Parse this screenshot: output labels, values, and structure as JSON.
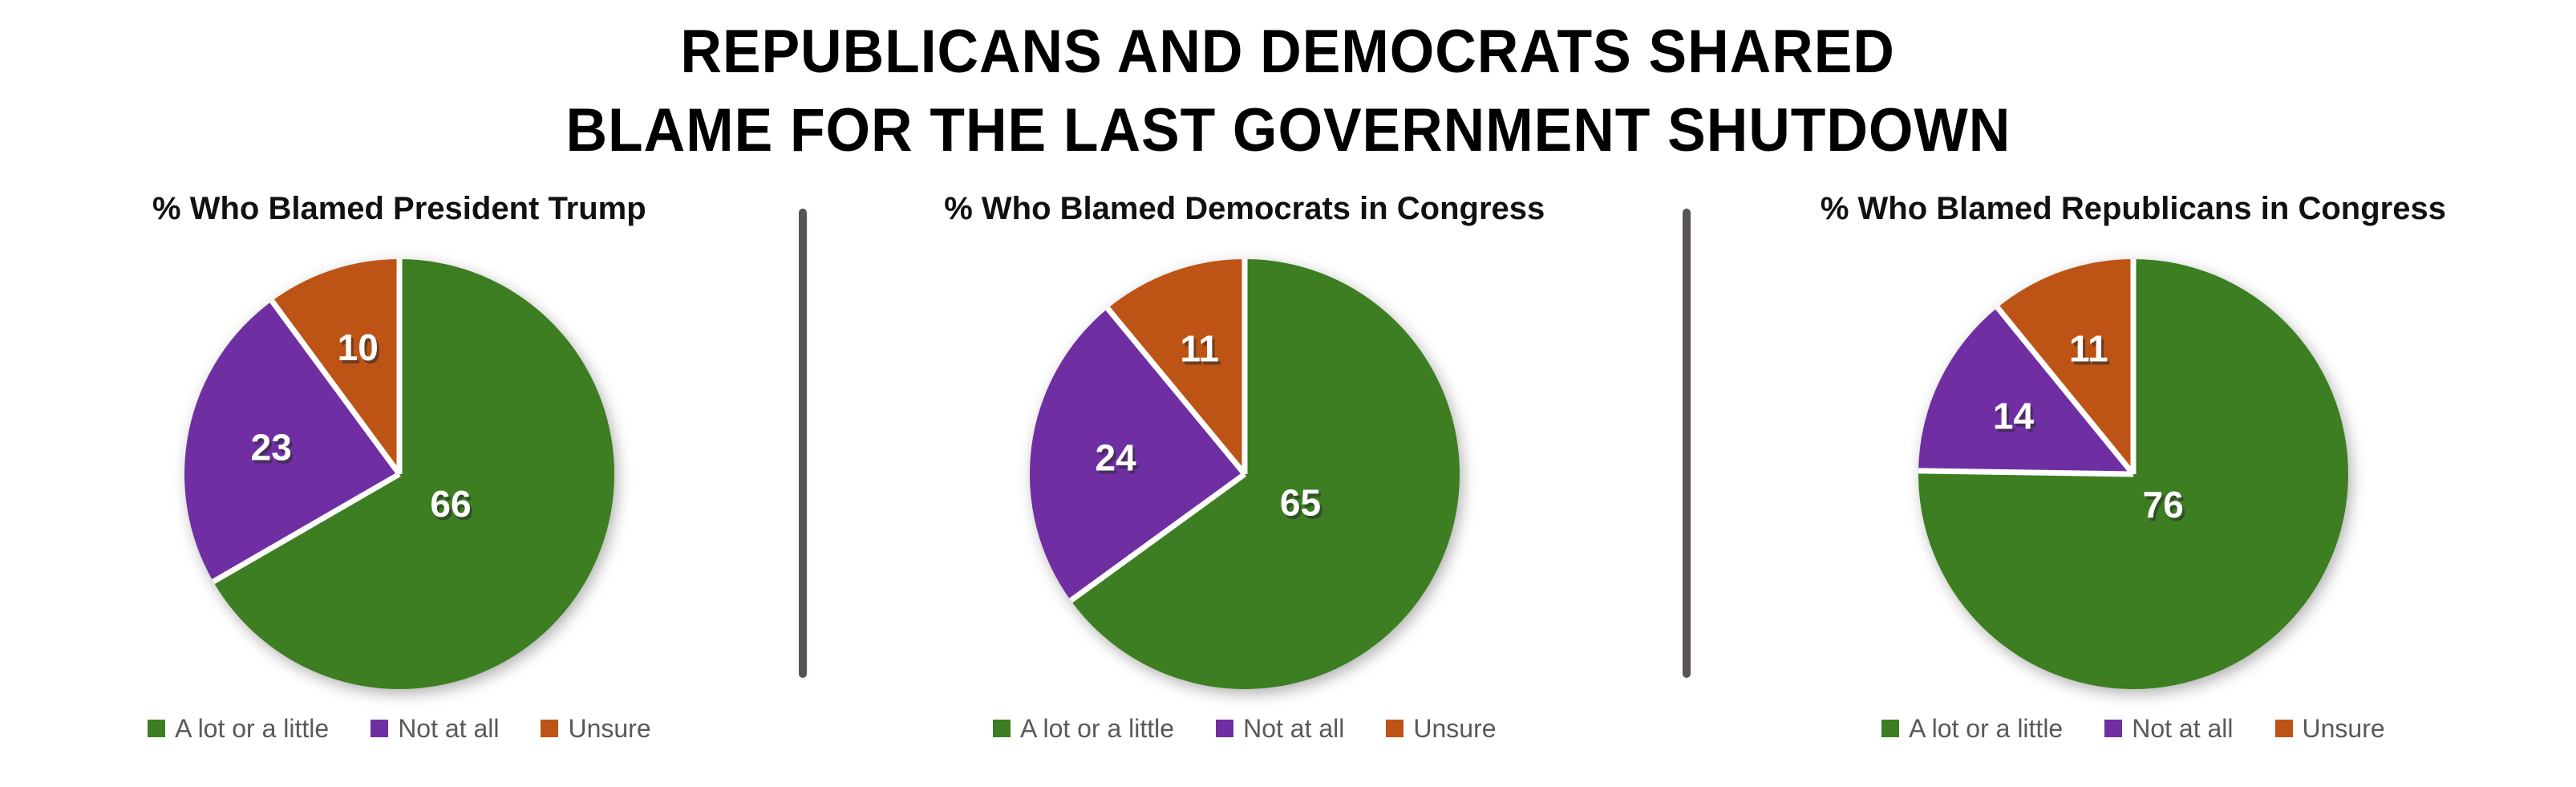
{
  "page": {
    "background": "#ffffff"
  },
  "title": {
    "line1": "REPUBLICANS AND DEMOCRATS SHARED",
    "line2": "BLAME FOR THE LAST GOVERNMENT SHUTDOWN"
  },
  "colors": {
    "green": "#3c7e21",
    "purple": "#6f2fa3",
    "orange": "#bd5416",
    "divider": "#5a5353",
    "legend_text": "#595959",
    "slice_label": "#ffffff"
  },
  "chart_data": [
    {
      "type": "pie",
      "title": "% Who Blamed President Trump",
      "categories": [
        "A lot or a little",
        "Not at all",
        "Unsure"
      ],
      "values": [
        66,
        23,
        10
      ],
      "colors": [
        "#3c7e21",
        "#6f2fa3",
        "#bd5416"
      ],
      "start_angle_deg": 0,
      "direction": "clockwise",
      "data_labels": "values-inside",
      "legend_position": "bottom"
    },
    {
      "type": "pie",
      "title": "% Who Blamed Democrats in Congress",
      "categories": [
        "A lot or a little",
        "Not at all",
        "Unsure"
      ],
      "values": [
        65,
        24,
        11
      ],
      "colors": [
        "#3c7e21",
        "#6f2fa3",
        "#bd5416"
      ],
      "start_angle_deg": 0,
      "direction": "clockwise",
      "data_labels": "values-inside",
      "legend_position": "bottom"
    },
    {
      "type": "pie",
      "title": "% Who Blamed Republicans in Congress",
      "categories": [
        "A lot or a little",
        "Not at all",
        "Unsure"
      ],
      "values": [
        76,
        14,
        11
      ],
      "colors": [
        "#3c7e21",
        "#6f2fa3",
        "#bd5416"
      ],
      "start_angle_deg": 0,
      "direction": "clockwise",
      "data_labels": "values-inside",
      "legend_position": "bottom"
    }
  ]
}
